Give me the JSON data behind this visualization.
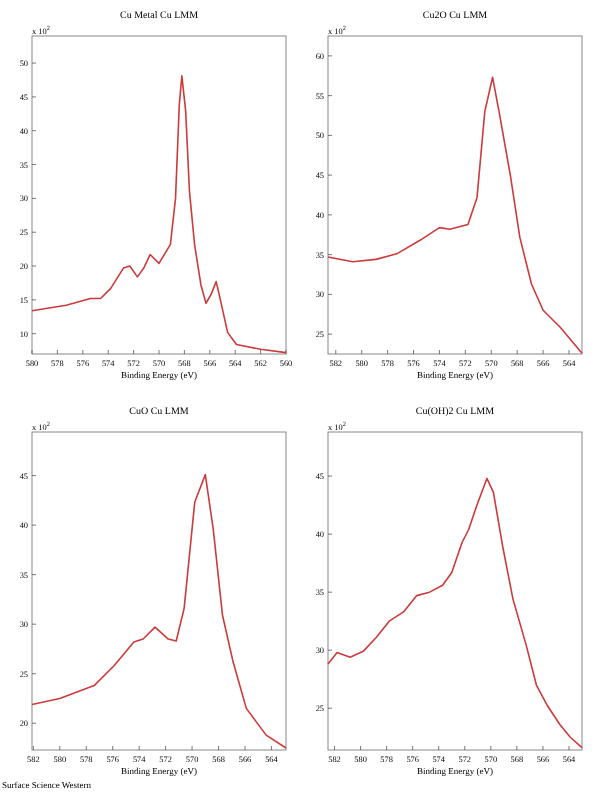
{
  "chart_data": [
    {
      "type": "line",
      "title": "Cu Metal Cu LMM",
      "xlabel": "Binding Energy (eV)",
      "ylabel": "x 10$^{2}$",
      "xlim": [
        580,
        560
      ],
      "ylim": [
        7,
        54
      ],
      "xticks": [
        580,
        578,
        576,
        574,
        572,
        570,
        568,
        566,
        564,
        562,
        560
      ],
      "yticks": [
        10,
        15,
        20,
        25,
        30,
        35,
        40,
        45,
        50
      ],
      "grid": false,
      "series": [
        {
          "color": "#cc3b3b",
          "x": [
            580,
            577.3,
            575.4,
            574.6,
            573.8,
            572.8,
            572.3,
            571.7,
            571.2,
            570.7,
            570.0,
            569.1,
            568.7,
            568.4,
            568.2,
            567.9,
            567.6,
            567.2,
            566.7,
            566.3,
            565.9,
            565.5,
            565.2,
            564.6,
            563.9,
            562.0,
            560
          ],
          "values": [
            13.4,
            14.2,
            15.2,
            15.2,
            16.7,
            19.7,
            20,
            18.4,
            19.7,
            21.7,
            20.4,
            23.2,
            30,
            43.9,
            48.1,
            42.9,
            31,
            23.2,
            17.2,
            14.5,
            15.8,
            17.7,
            15.3,
            10.2,
            8.4,
            7.7,
            7.2
          ]
        }
      ]
    },
    {
      "type": "line",
      "title": "Cu2O Cu LMM",
      "xlabel": "Binding Energy (eV)",
      "ylabel": "x 10$^{2}$",
      "xlim": [
        582.6,
        563
      ],
      "ylim": [
        22.5,
        62.5
      ],
      "xticks": [
        582,
        580,
        578,
        576,
        574,
        572,
        570,
        568,
        566,
        564
      ],
      "yticks": [
        25,
        30,
        35,
        40,
        45,
        50,
        55,
        60
      ],
      "grid": false,
      "series": [
        {
          "color": "#cc3b3b",
          "x": [
            582.6,
            580.7,
            578.9,
            577.3,
            575.5,
            574.0,
            573.2,
            571.8,
            571.1,
            570.5,
            569.9,
            569.4,
            568.5,
            567.8,
            566.9,
            566.0,
            564.7,
            563.0
          ],
          "values": [
            34.7,
            34.1,
            34.4,
            35.1,
            36.8,
            38.4,
            38.2,
            38.8,
            42.2,
            53,
            57.3,
            53,
            44.7,
            37.2,
            31.3,
            28,
            25.9,
            22.6
          ]
        }
      ]
    },
    {
      "type": "line",
      "title": "CuO Cu LMM",
      "xlabel": "Binding Energy (eV)",
      "ylabel": "x 10$^{2}$",
      "xlim": [
        582.1,
        562.9
      ],
      "ylim": [
        17.3,
        49.4
      ],
      "xticks": [
        582,
        580,
        578,
        576,
        574,
        572,
        570,
        568,
        566,
        564
      ],
      "yticks": [
        20,
        25,
        30,
        35,
        40,
        45
      ],
      "grid": false,
      "annotations": [
        "Surface Science Western"
      ],
      "series": [
        {
          "color": "#cc3b3b",
          "x": [
            582.1,
            580.0,
            577.4,
            575.9,
            574.4,
            573.7,
            572.8,
            571.8,
            571.2,
            570.6,
            569.8,
            569.0,
            568.4,
            567.7,
            566.9,
            565.9,
            564.4,
            562.9
          ],
          "values": [
            21.9,
            22.5,
            23.8,
            25.8,
            28.2,
            28.5,
            29.7,
            28.5,
            28.3,
            31.6,
            42.3,
            45.1,
            39.6,
            30.9,
            26.2,
            21.5,
            18.8,
            17.5
          ]
        }
      ]
    },
    {
      "type": "line",
      "title": "Cu(OH)2 Cu LMM",
      "xlabel": "Binding Energy (eV)",
      "ylabel": "x 10$^{2}$",
      "xlim": [
        582.5,
        563
      ],
      "ylim": [
        21.4,
        48.8
      ],
      "xticks": [
        582,
        580,
        578,
        576,
        574,
        572,
        570,
        568,
        566,
        564
      ],
      "yticks": [
        25,
        30,
        35,
        40,
        45
      ],
      "grid": false,
      "series": [
        {
          "color": "#cc3b3b",
          "x": [
            582.5,
            581.8,
            580.8,
            579.8,
            578.8,
            577.8,
            576.7,
            575.7,
            574.7,
            573.7,
            573.0,
            572.2,
            571.7,
            571.1,
            570.3,
            569.8,
            569.1,
            568.3,
            567.3,
            566.5,
            565.7,
            564.7,
            563.9,
            563.0
          ],
          "values": [
            28.8,
            29.8,
            29.4,
            29.9,
            31.1,
            32.5,
            33.3,
            34.7,
            35,
            35.6,
            36.7,
            39.3,
            40.4,
            42.4,
            44.8,
            43.6,
            39,
            34.4,
            30.5,
            27,
            25.3,
            23.6,
            22.5,
            21.6
          ]
        }
      ]
    }
  ]
}
